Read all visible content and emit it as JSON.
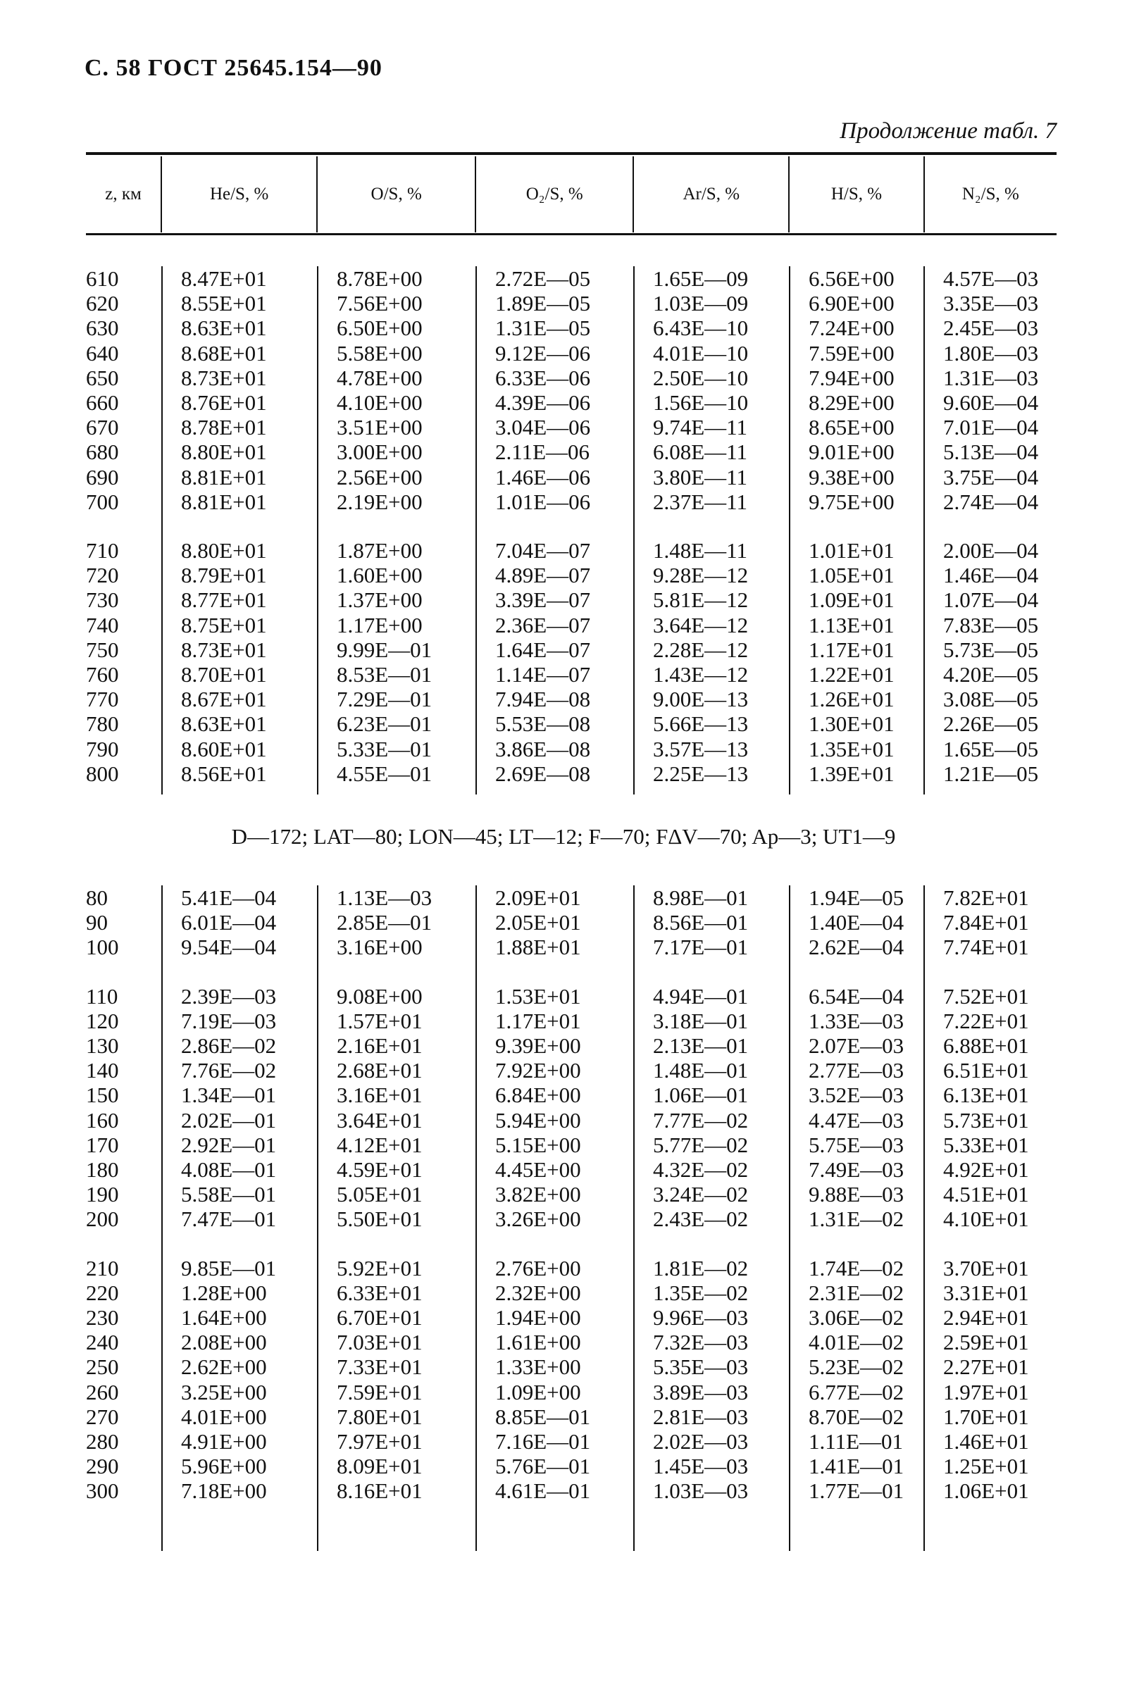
{
  "header": {
    "page_title": "С. 58 ГОСТ 25645.154—90",
    "continuation": "Продолжение табл. 7"
  },
  "columns": [
    "z, км",
    "He/S, %",
    "O/S, %",
    "O₂/S, %",
    "Ar/S, %",
    "H/S, %",
    "N₂/S, %"
  ],
  "section1": {
    "blocks": [
      [
        [
          "610",
          "8.47E+01",
          "8.78E+00",
          "2.72E—05",
          "1.65E—09",
          "6.56E+00",
          "4.57E—03"
        ],
        [
          "620",
          "8.55E+01",
          "7.56E+00",
          "1.89E—05",
          "1.03E—09",
          "6.90E+00",
          "3.35E—03"
        ],
        [
          "630",
          "8.63E+01",
          "6.50E+00",
          "1.31E—05",
          "6.43E—10",
          "7.24E+00",
          "2.45E—03"
        ],
        [
          "640",
          "8.68E+01",
          "5.58E+00",
          "9.12E—06",
          "4.01E—10",
          "7.59E+00",
          "1.80E—03"
        ],
        [
          "650",
          "8.73E+01",
          "4.78E+00",
          "6.33E—06",
          "2.50E—10",
          "7.94E+00",
          "1.31E—03"
        ],
        [
          "660",
          "8.76E+01",
          "4.10E+00",
          "4.39E—06",
          "1.56E—10",
          "8.29E+00",
          "9.60E—04"
        ],
        [
          "670",
          "8.78E+01",
          "3.51E+00",
          "3.04E—06",
          "9.74E—11",
          "8.65E+00",
          "7.01E—04"
        ],
        [
          "680",
          "8.80E+01",
          "3.00E+00",
          "2.11E—06",
          "6.08E—11",
          "9.01E+00",
          "5.13E—04"
        ],
        [
          "690",
          "8.81E+01",
          "2.56E+00",
          "1.46E—06",
          "3.80E—11",
          "9.38E+00",
          "3.75E—04"
        ],
        [
          "700",
          "8.81E+01",
          "2.19E+00",
          "1.01E—06",
          "2.37E—11",
          "9.75E+00",
          "2.74E—04"
        ]
      ],
      [
        [
          "710",
          "8.80E+01",
          "1.87E+00",
          "7.04E—07",
          "1.48E—11",
          "1.01E+01",
          "2.00E—04"
        ],
        [
          "720",
          "8.79E+01",
          "1.60E+00",
          "4.89E—07",
          "9.28E—12",
          "1.05E+01",
          "1.46E—04"
        ],
        [
          "730",
          "8.77E+01",
          "1.37E+00",
          "3.39E—07",
          "5.81E—12",
          "1.09E+01",
          "1.07E—04"
        ],
        [
          "740",
          "8.75E+01",
          "1.17E+00",
          "2.36E—07",
          "3.64E—12",
          "1.13E+01",
          "7.83E—05"
        ],
        [
          "750",
          "8.73E+01",
          "9.99E—01",
          "1.64E—07",
          "2.28E—12",
          "1.17E+01",
          "5.73E—05"
        ],
        [
          "760",
          "8.70E+01",
          "8.53E—01",
          "1.14E—07",
          "1.43E—12",
          "1.22E+01",
          "4.20E—05"
        ],
        [
          "770",
          "8.67E+01",
          "7.29E—01",
          "7.94E—08",
          "9.00E—13",
          "1.26E+01",
          "3.08E—05"
        ],
        [
          "780",
          "8.63E+01",
          "6.23E—01",
          "5.53E—08",
          "5.66E—13",
          "1.30E+01",
          "2.26E—05"
        ],
        [
          "790",
          "8.60E+01",
          "5.33E—01",
          "3.86E—08",
          "3.57E—13",
          "1.35E+01",
          "1.65E—05"
        ],
        [
          "800",
          "8.56E+01",
          "4.55E—01",
          "2.69E—08",
          "2.25E—13",
          "1.39E+01",
          "1.21E—05"
        ]
      ]
    ]
  },
  "section2": {
    "params": "D—172; LAT—80; LON—45; LT—12; F—70; FΔV—70; Aр—3; UT1—9",
    "blocks": [
      [
        [
          "80",
          "5.41E—04",
          "1.13E—03",
          "2.09E+01",
          "8.98E—01",
          "1.94E—05",
          "7.82E+01"
        ],
        [
          "90",
          "6.01E—04",
          "2.85E—01",
          "2.05E+01",
          "8.56E—01",
          "1.40E—04",
          "7.84E+01"
        ],
        [
          "100",
          "9.54E—04",
          "3.16E+00",
          "1.88E+01",
          "7.17E—01",
          "2.62E—04",
          "7.74E+01"
        ]
      ],
      [
        [
          "110",
          "2.39E—03",
          "9.08E+00",
          "1.53E+01",
          "4.94E—01",
          "6.54E—04",
          "7.52E+01"
        ],
        [
          "120",
          "7.19E—03",
          "1.57E+01",
          "1.17E+01",
          "3.18E—01",
          "1.33E—03",
          "7.22E+01"
        ],
        [
          "130",
          "2.86E—02",
          "2.16E+01",
          "9.39E+00",
          "2.13E—01",
          "2.07E—03",
          "6.88E+01"
        ],
        [
          "140",
          "7.76E—02",
          "2.68E+01",
          "7.92E+00",
          "1.48E—01",
          "2.77E—03",
          "6.51E+01"
        ],
        [
          "150",
          "1.34E—01",
          "3.16E+01",
          "6.84E+00",
          "1.06E—01",
          "3.52E—03",
          "6.13E+01"
        ],
        [
          "160",
          "2.02E—01",
          "3.64E+01",
          "5.94E+00",
          "7.77E—02",
          "4.47E—03",
          "5.73E+01"
        ],
        [
          "170",
          "2.92E—01",
          "4.12E+01",
          "5.15E+00",
          "5.77E—02",
          "5.75E—03",
          "5.33E+01"
        ],
        [
          "180",
          "4.08E—01",
          "4.59E+01",
          "4.45E+00",
          "4.32E—02",
          "7.49E—03",
          "4.92E+01"
        ],
        [
          "190",
          "5.58E—01",
          "5.05E+01",
          "3.82E+00",
          "3.24E—02",
          "9.88E—03",
          "4.51E+01"
        ],
        [
          "200",
          "7.47E—01",
          "5.50E+01",
          "3.26E+00",
          "2.43E—02",
          "1.31E—02",
          "4.10E+01"
        ]
      ],
      [
        [
          "210",
          "9.85E—01",
          "5.92E+01",
          "2.76E+00",
          "1.81E—02",
          "1.74E—02",
          "3.70E+01"
        ],
        [
          "220",
          "1.28E+00",
          "6.33E+01",
          "2.32E+00",
          "1.35E—02",
          "2.31E—02",
          "3.31E+01"
        ],
        [
          "230",
          "1.64E+00",
          "6.70E+01",
          "1.94E+00",
          "9.96E—03",
          "3.06E—02",
          "2.94E+01"
        ],
        [
          "240",
          "2.08E+00",
          "7.03E+01",
          "1.61E+00",
          "7.32E—03",
          "4.01E—02",
          "2.59E+01"
        ],
        [
          "250",
          "2.62E+00",
          "7.33E+01",
          "1.33E+00",
          "5.35E—03",
          "5.23E—02",
          "2.27E+01"
        ],
        [
          "260",
          "3.25E+00",
          "7.59E+01",
          "1.09E+00",
          "3.89E—03",
          "6.77E—02",
          "1.97E+01"
        ],
        [
          "270",
          "4.01E+00",
          "7.80E+01",
          "8.85E—01",
          "2.81E—03",
          "8.70E—02",
          "1.70E+01"
        ],
        [
          "280",
          "4.91E+00",
          "7.97E+01",
          "7.16E—01",
          "2.02E—03",
          "1.11E—01",
          "1.46E+01"
        ],
        [
          "290",
          "5.96E+00",
          "8.09E+01",
          "5.76E—01",
          "1.45E—03",
          "1.41E—01",
          "1.25E+01"
        ],
        [
          "300",
          "7.18E+00",
          "8.16E+01",
          "4.61E—01",
          "1.03E—03",
          "1.77E—01",
          "1.06E+01"
        ]
      ]
    ]
  }
}
